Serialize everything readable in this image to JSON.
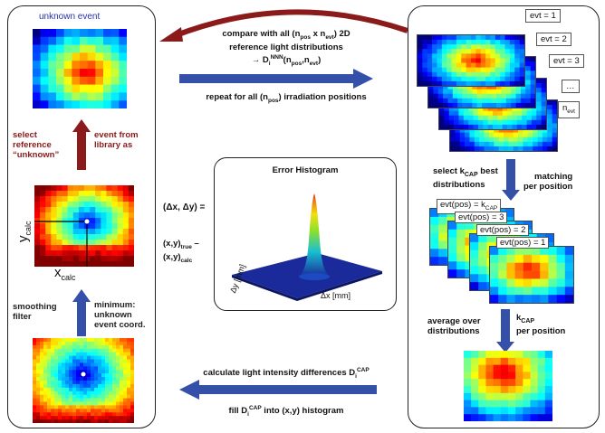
{
  "left_panel": {
    "title": "unknown event",
    "select_label": [
      "select",
      "reference",
      "“unknown”"
    ],
    "event_label": [
      "event  from",
      "library as"
    ],
    "y_axis": "y",
    "y_sub": "calc",
    "x_axis": "x",
    "x_sub": "calc",
    "smoothing_label": [
      "smoothing",
      "filter"
    ],
    "minimum_label": [
      "minimum:",
      "unknown",
      "event coord."
    ]
  },
  "top_middle": {
    "line1": "compare with all (n",
    "line1_sub1": "pos",
    "line1_mid": " x n",
    "line1_sub2": "evt",
    "line1_end": ") 2D",
    "line2": "reference light distributions",
    "line3_pre": "→ D",
    "line3_sub": "i",
    "line3_sup": "NNN",
    "line3_end": "(n",
    "line3_s1": "pos",
    "line3_c": ",n",
    "line3_s2": "evt",
    "line3_close": ")",
    "repeat_pre": "repeat for all (n",
    "repeat_sub": "pos",
    "repeat_end": ") irradiation positions"
  },
  "histogram": {
    "title": "Error Histogram",
    "y_axis": "Δy [mm]",
    "x_axis": "Δx [mm]"
  },
  "delta_labels": {
    "delta": "(Δx, Δy) =",
    "true_pre": "(x,y)",
    "true_sub": "true",
    "dash": " –",
    "calc_pre": "(x,y)",
    "calc_sub": "calc"
  },
  "right_panel": {
    "evt_tags": [
      "evt = 1",
      "evt = 2",
      "evt = 3",
      "…",
      "n"
    ],
    "evt_sub": "evt",
    "select_pre": "select k",
    "select_sub": "CAP",
    "select_post": " best",
    "distributions": "distributions",
    "matching": "matching",
    "per_position": "per position",
    "evtpos_tags": [
      "evt(pos) = k",
      "evt(pos) = 3",
      "evt(pos) = 2",
      "evt(pos) = 1"
    ],
    "evtpos_sub": "CAP",
    "average": [
      "average over",
      "distributions"
    ],
    "kcap_pre": "k",
    "kcap_sub": "CAP",
    "kcap_post": "per  position"
  },
  "bottom_middle": {
    "calc_pre": "calculate light intensity differences D",
    "calc_sub": "i",
    "calc_sup": "CAP",
    "fill_pre": "fill D",
    "fill_sub": "i",
    "fill_sup": "CAP",
    "fill_post": " into (x,y) histogram"
  },
  "colors": {
    "blue_arrow": "#3550a8",
    "red_arrow": "#8b1a1a",
    "hot": "#e8141a",
    "cold": "#1840c8"
  }
}
